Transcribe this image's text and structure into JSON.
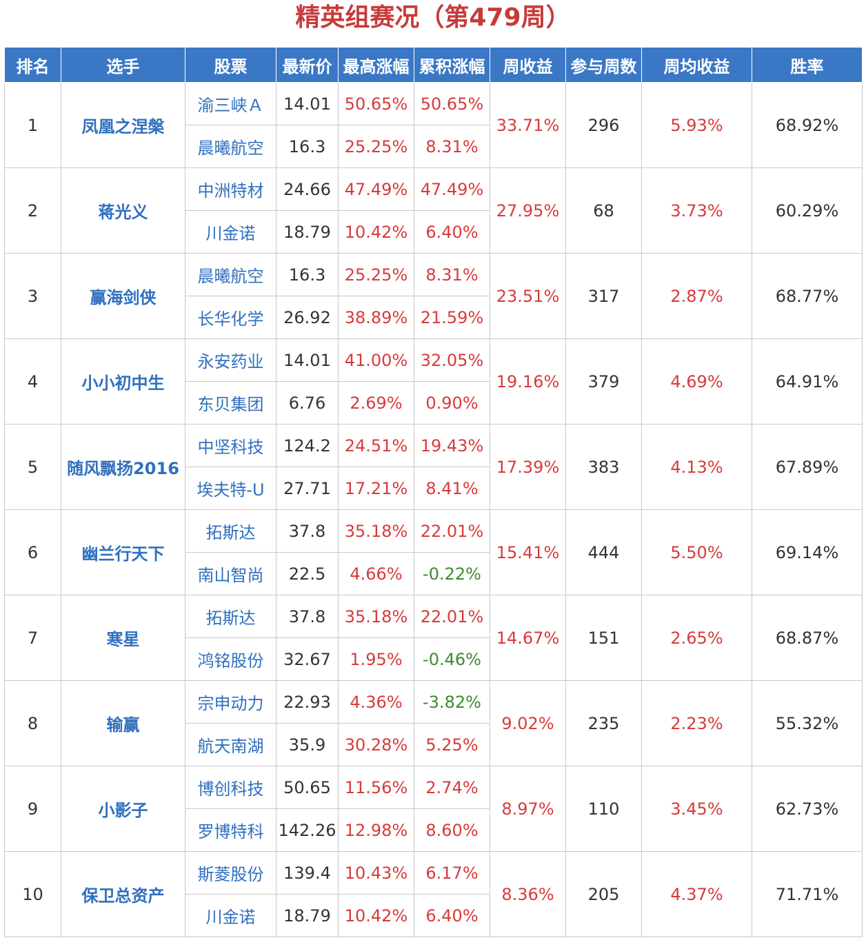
{
  "title": "精英组赛况（第479周）",
  "headers": [
    "排名",
    "选手",
    "股票",
    "最新价",
    "最高涨幅",
    "累积涨幅",
    "周收益",
    "参与周数",
    "周均收益",
    "胜率"
  ],
  "rows": [
    {
      "rank": "1",
      "player": "凤凰之涅槃",
      "weekly": "33.71%",
      "weeks": "296",
      "avg": "5.93%",
      "winrate": "68.92%",
      "stocks": [
        {
          "name": "渝三峡Ａ",
          "price": "14.01",
          "max": "50.65%",
          "cum": "50.65%"
        },
        {
          "name": "晨曦航空",
          "price": "16.3",
          "max": "25.25%",
          "cum": "8.31%"
        }
      ]
    },
    {
      "rank": "2",
      "player": "蒋光义",
      "weekly": "27.95%",
      "weeks": "68",
      "avg": "3.73%",
      "winrate": "60.29%",
      "stocks": [
        {
          "name": "中洲特材",
          "price": "24.66",
          "max": "47.49%",
          "cum": "47.49%"
        },
        {
          "name": "川金诺",
          "price": "18.79",
          "max": "10.42%",
          "cum": "6.40%"
        }
      ]
    },
    {
      "rank": "3",
      "player": "赢海剑侠",
      "weekly": "23.51%",
      "weeks": "317",
      "avg": "2.87%",
      "winrate": "68.77%",
      "stocks": [
        {
          "name": "晨曦航空",
          "price": "16.3",
          "max": "25.25%",
          "cum": "8.31%"
        },
        {
          "name": "长华化学",
          "price": "26.92",
          "max": "38.89%",
          "cum": "21.59%"
        }
      ]
    },
    {
      "rank": "4",
      "player": "小小初中生",
      "weekly": "19.16%",
      "weeks": "379",
      "avg": "4.69%",
      "winrate": "64.91%",
      "stocks": [
        {
          "name": "永安药业",
          "price": "14.01",
          "max": "41.00%",
          "cum": "32.05%"
        },
        {
          "name": "东贝集团",
          "price": "6.76",
          "max": "2.69%",
          "cum": "0.90%"
        }
      ]
    },
    {
      "rank": "5",
      "player": "随风飘扬2016",
      "weekly": "17.39%",
      "weeks": "383",
      "avg": "4.13%",
      "winrate": "67.89%",
      "stocks": [
        {
          "name": "中坚科技",
          "price": "124.2",
          "max": "24.51%",
          "cum": "19.43%"
        },
        {
          "name": "埃夫特-U",
          "price": "27.71",
          "max": "17.21%",
          "cum": "8.41%"
        }
      ]
    },
    {
      "rank": "6",
      "player": "幽兰行天下",
      "weekly": "15.41%",
      "weeks": "444",
      "avg": "5.50%",
      "winrate": "69.14%",
      "stocks": [
        {
          "name": "拓斯达",
          "price": "37.8",
          "max": "35.18%",
          "cum": "22.01%"
        },
        {
          "name": "南山智尚",
          "price": "22.5",
          "max": "4.66%",
          "cum": "-0.22%"
        }
      ]
    },
    {
      "rank": "7",
      "player": "寒星",
      "weekly": "14.67%",
      "weeks": "151",
      "avg": "2.65%",
      "winrate": "68.87%",
      "stocks": [
        {
          "name": "拓斯达",
          "price": "37.8",
          "max": "35.18%",
          "cum": "22.01%"
        },
        {
          "name": "鸿铭股份",
          "price": "32.67",
          "max": "1.95%",
          "cum": "-0.46%"
        }
      ]
    },
    {
      "rank": "8",
      "player": "输赢",
      "weekly": "9.02%",
      "weeks": "235",
      "avg": "2.23%",
      "winrate": "55.32%",
      "stocks": [
        {
          "name": "宗申动力",
          "price": "22.93",
          "max": "4.36%",
          "cum": "-3.82%"
        },
        {
          "name": "航天南湖",
          "price": "35.9",
          "max": "30.28%",
          "cum": "5.25%"
        }
      ]
    },
    {
      "rank": "9",
      "player": "小影子",
      "weekly": "8.97%",
      "weeks": "110",
      "avg": "3.45%",
      "winrate": "62.73%",
      "stocks": [
        {
          "name": "博创科技",
          "price": "50.65",
          "max": "11.56%",
          "cum": "2.74%"
        },
        {
          "name": "罗博特科",
          "price": "142.26",
          "max": "12.98%",
          "cum": "8.60%"
        }
      ]
    },
    {
      "rank": "10",
      "player": "保卫总资产",
      "weekly": "8.36%",
      "weeks": "205",
      "avg": "4.37%",
      "winrate": "71.71%",
      "stocks": [
        {
          "name": "斯菱股份",
          "price": "139.4",
          "max": "10.43%",
          "cum": "6.17%"
        },
        {
          "name": "川金诺",
          "price": "18.79",
          "max": "10.42%",
          "cum": "6.40%"
        }
      ]
    }
  ],
  "colors": {
    "header_bg": "#3a78c6",
    "title": "#c73a3a",
    "positive": "#d83a3a",
    "negative": "#3f8a2f",
    "link": "#2f6fbf"
  }
}
